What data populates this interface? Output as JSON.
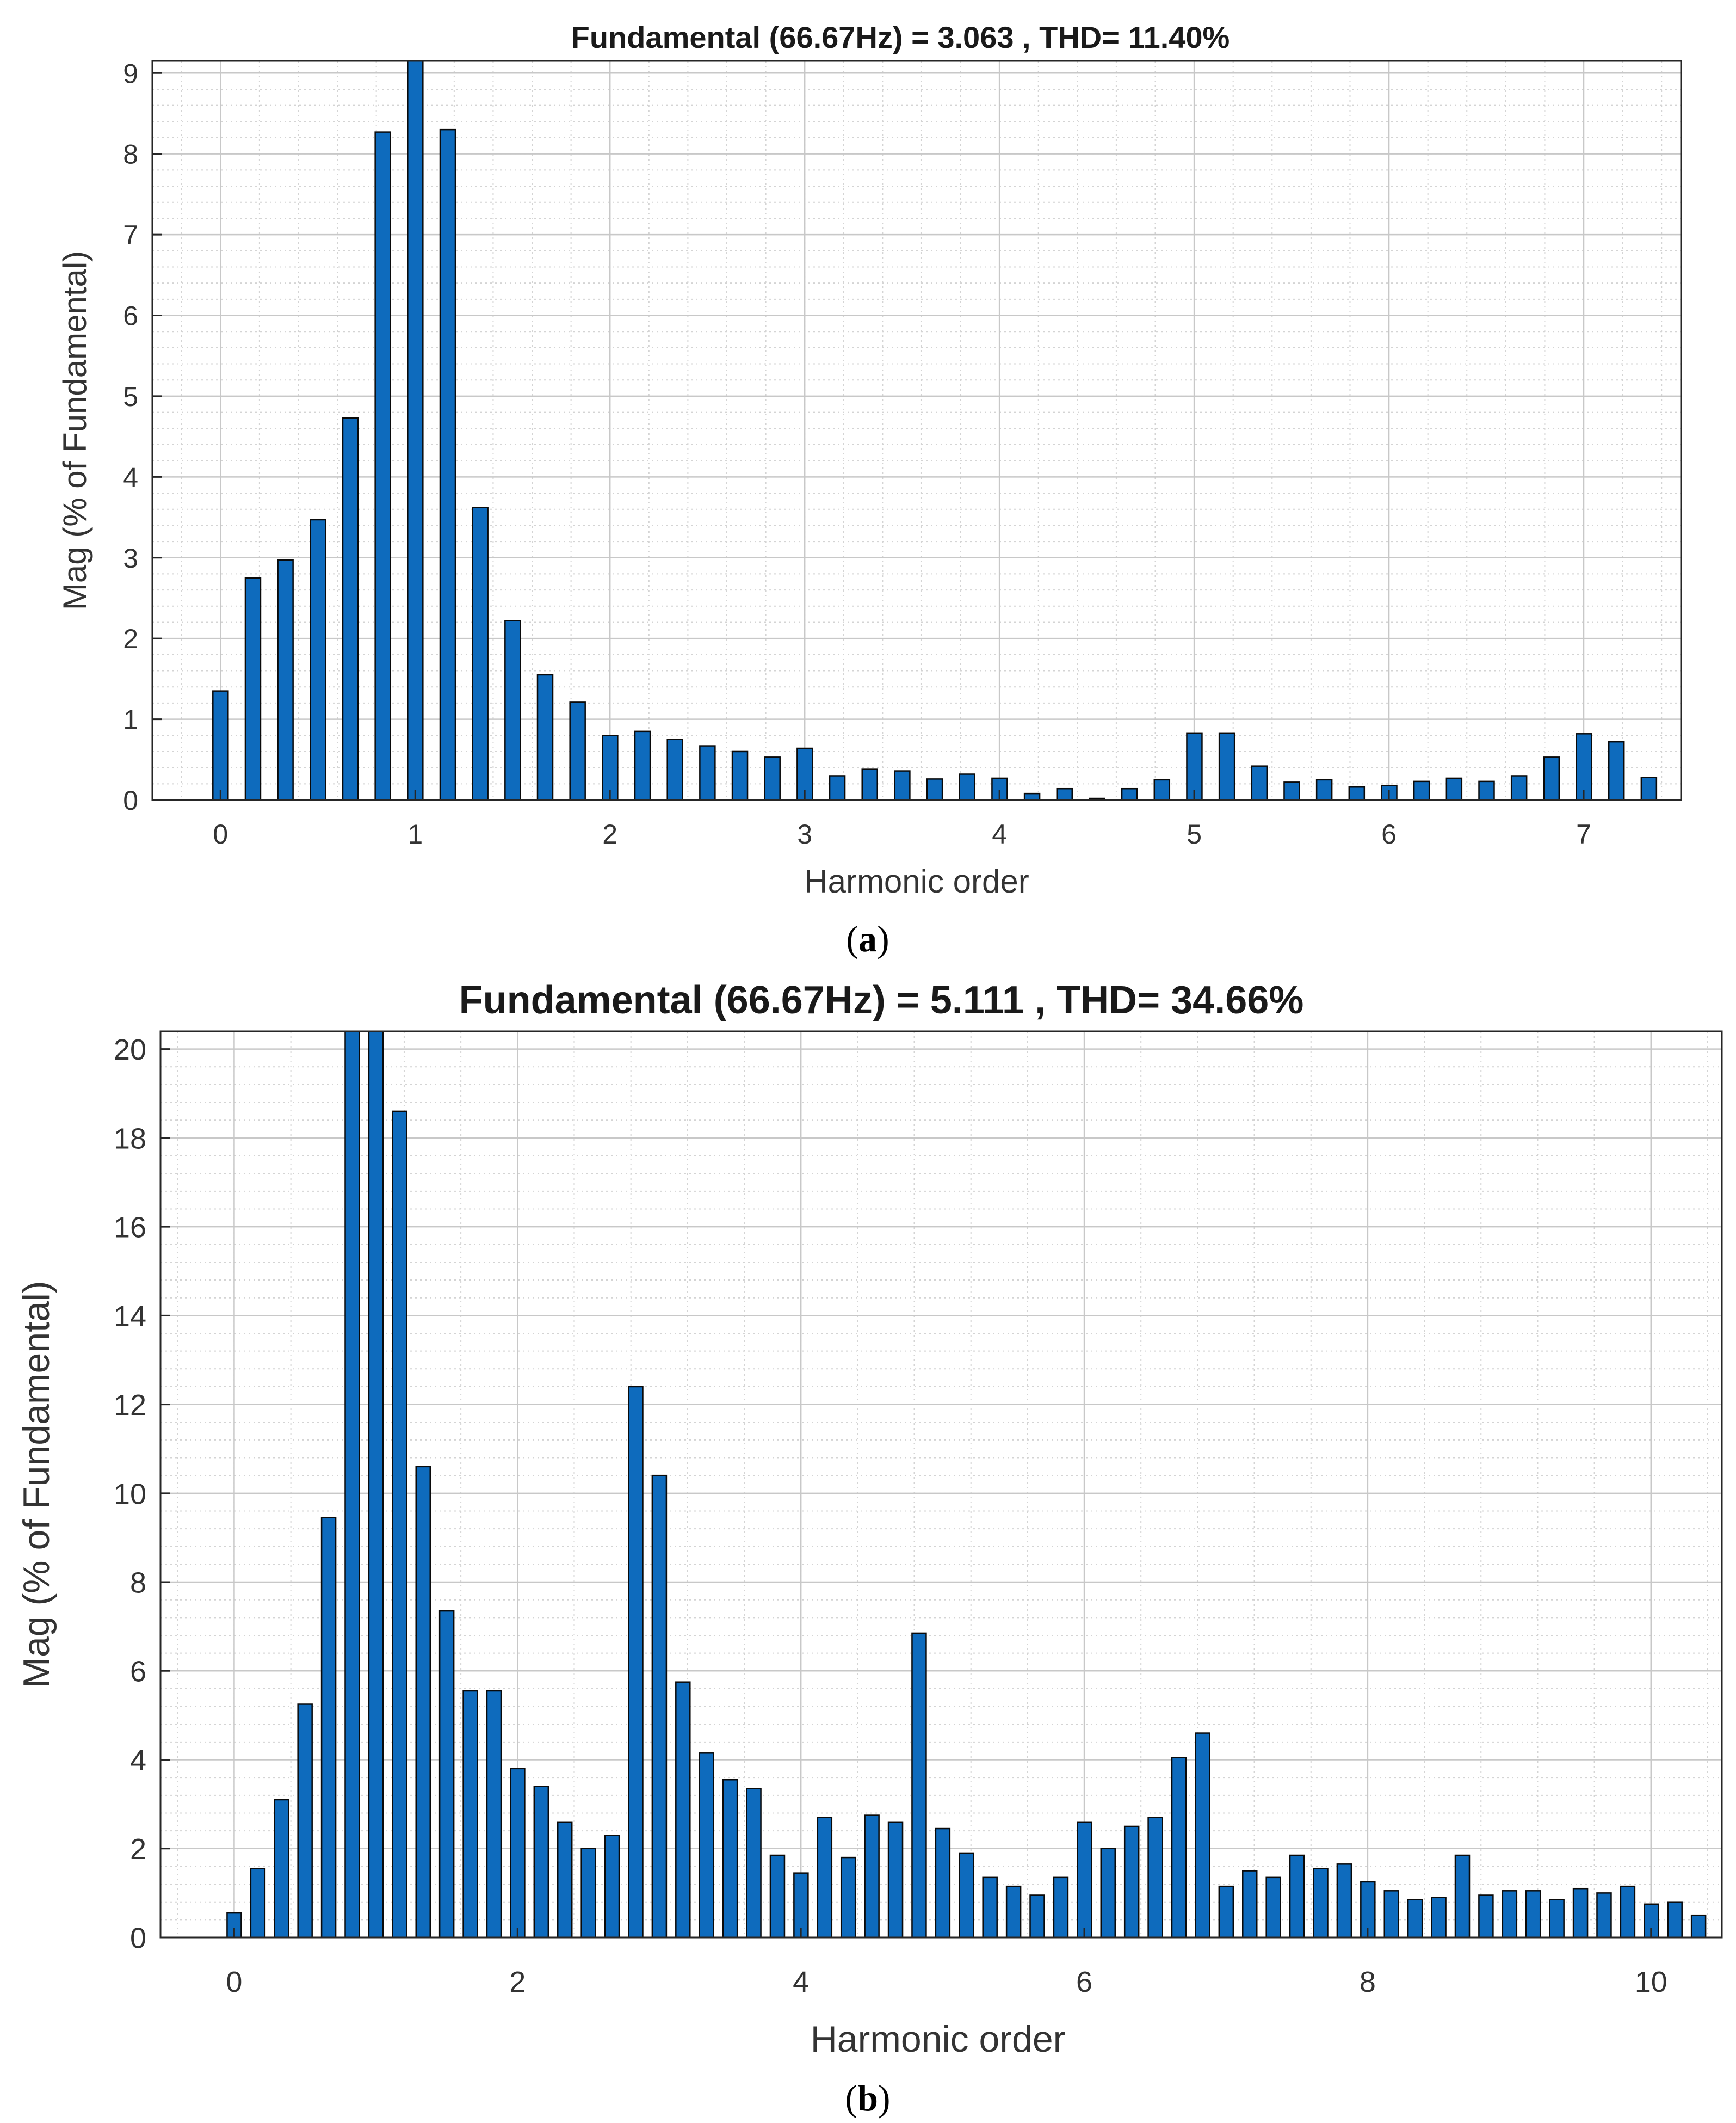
{
  "chart_data": [
    {
      "type": "bar",
      "title": "Fundamental (66.67Hz) = 3.063 , THD= 11.40%",
      "xlabel": "Harmonic order",
      "ylabel": "Mag (% of Fundamental)",
      "caption_letter": "a",
      "xlim": [
        -0.35,
        7.5
      ],
      "ylim": [
        0,
        9.15
      ],
      "xticks": [
        0,
        1,
        2,
        3,
        4,
        5,
        6,
        7
      ],
      "yticks": [
        0,
        1,
        2,
        3,
        4,
        5,
        6,
        7,
        8,
        9
      ],
      "grid": true,
      "bar_step": 0.1667,
      "color": "#0e6bbd",
      "values": [
        1.35,
        2.75,
        2.97,
        3.47,
        4.73,
        8.27,
        9.15,
        8.3,
        3.62,
        2.22,
        1.55,
        1.21,
        0.8,
        0.85,
        0.75,
        0.67,
        0.6,
        0.53,
        0.64,
        0.3,
        0.38,
        0.36,
        0.26,
        0.32,
        0.27,
        0.08,
        0.14,
        0.02,
        0.14,
        0.25,
        0.83,
        0.83,
        0.42,
        0.22,
        0.25,
        0.16,
        0.18,
        0.23,
        0.27,
        0.23,
        0.3,
        0.53,
        0.82,
        0.72,
        0.28
      ]
    },
    {
      "type": "bar",
      "title": "Fundamental (66.67Hz) = 5.111 , THD= 34.66%",
      "xlabel": "Harmonic order",
      "ylabel": "Mag (% of Fundamental)",
      "caption_letter": "b",
      "xlim": [
        -0.52,
        10.5
      ],
      "ylim": [
        0,
        20.4
      ],
      "xticks": [
        0,
        2,
        4,
        6,
        8,
        10
      ],
      "yticks": [
        0,
        2,
        4,
        6,
        8,
        10,
        12,
        14,
        16,
        18,
        20
      ],
      "grid": true,
      "bar_step": 0.1667,
      "color": "#0e6bbd",
      "values": [
        0.55,
        1.55,
        3.1,
        5.25,
        9.45,
        20.4,
        20.4,
        18.6,
        10.6,
        7.35,
        5.55,
        5.55,
        3.8,
        3.4,
        2.6,
        2.0,
        2.3,
        12.4,
        10.4,
        5.75,
        4.15,
        3.55,
        3.35,
        1.85,
        1.45,
        2.7,
        1.8,
        2.75,
        2.6,
        6.85,
        2.45,
        1.9,
        1.35,
        1.15,
        0.95,
        1.35,
        2.6,
        2.0,
        2.5,
        2.7,
        4.05,
        4.6,
        1.15,
        1.5,
        1.35,
        1.85,
        1.55,
        1.65,
        1.25,
        1.05,
        0.85,
        0.9,
        1.85,
        0.95,
        1.05,
        1.05,
        0.85,
        1.1,
        1.0,
        1.15,
        0.75,
        0.8,
        0.5
      ]
    }
  ]
}
